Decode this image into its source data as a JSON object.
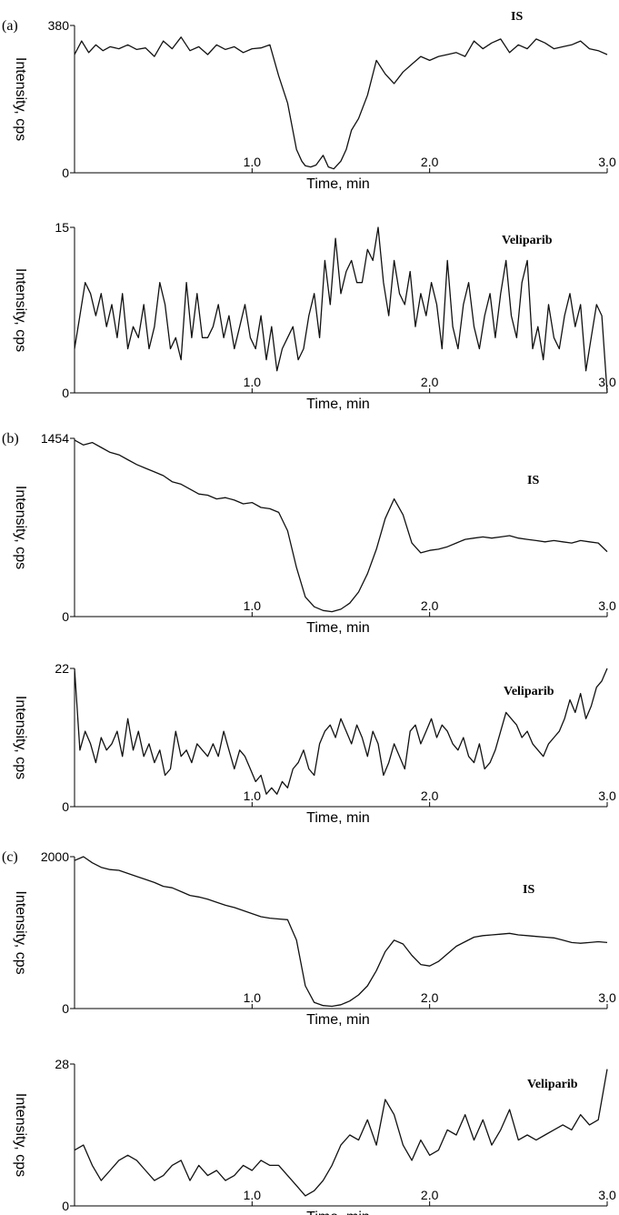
{
  "chart_data": [
    {
      "type": "line",
      "panel": "(a)",
      "series_label": "IS",
      "xlabel": "Time, min",
      "ylabel": "Intensity, cps",
      "xlim": [
        0,
        3.0
      ],
      "ylim": [
        0,
        380
      ],
      "xticks": [
        "1.0",
        "2.0",
        "3.0"
      ],
      "yticks": [
        "0",
        "380"
      ],
      "x": [
        0,
        0.04,
        0.08,
        0.12,
        0.16,
        0.2,
        0.25,
        0.3,
        0.35,
        0.4,
        0.45,
        0.5,
        0.55,
        0.6,
        0.65,
        0.7,
        0.75,
        0.8,
        0.85,
        0.9,
        0.95,
        1.0,
        1.05,
        1.1,
        1.15,
        1.2,
        1.25,
        1.28,
        1.3,
        1.33,
        1.36,
        1.4,
        1.43,
        1.46,
        1.5,
        1.53,
        1.56,
        1.6,
        1.65,
        1.7,
        1.75,
        1.8,
        1.85,
        1.9,
        1.95,
        2.0,
        2.05,
        2.1,
        2.15,
        2.2,
        2.25,
        2.3,
        2.35,
        2.4,
        2.45,
        2.5,
        2.55,
        2.6,
        2.65,
        2.7,
        2.75,
        2.8,
        2.85,
        2.9,
        2.95,
        3.0
      ],
      "y": [
        305,
        340,
        310,
        330,
        315,
        325,
        320,
        330,
        318,
        322,
        300,
        340,
        320,
        350,
        315,
        325,
        305,
        330,
        318,
        325,
        310,
        320,
        322,
        330,
        250,
        180,
        60,
        30,
        18,
        15,
        20,
        45,
        15,
        10,
        30,
        60,
        110,
        140,
        200,
        290,
        255,
        230,
        260,
        280,
        300,
        290,
        300,
        305,
        310,
        300,
        340,
        320,
        335,
        345,
        310,
        330,
        320,
        345,
        335,
        320,
        325,
        330,
        340,
        320,
        315,
        305
      ]
    },
    {
      "type": "line",
      "panel": "(a)",
      "series_label": "Veliparib",
      "xlabel": "Time, min",
      "ylabel": "Intensity, cps",
      "xlim": [
        0,
        3.0
      ],
      "ylim": [
        0,
        15
      ],
      "xticks": [
        "1.0",
        "2.0",
        "3.0"
      ],
      "yticks": [
        "0",
        "15"
      ],
      "x": [
        0,
        0.03,
        0.06,
        0.09,
        0.12,
        0.15,
        0.18,
        0.21,
        0.24,
        0.27,
        0.3,
        0.33,
        0.36,
        0.39,
        0.42,
        0.45,
        0.48,
        0.51,
        0.54,
        0.57,
        0.6,
        0.63,
        0.66,
        0.69,
        0.72,
        0.75,
        0.78,
        0.81,
        0.84,
        0.87,
        0.9,
        0.93,
        0.96,
        0.99,
        1.02,
        1.05,
        1.08,
        1.11,
        1.14,
        1.17,
        1.2,
        1.23,
        1.26,
        1.29,
        1.32,
        1.35,
        1.38,
        1.41,
        1.44,
        1.47,
        1.5,
        1.53,
        1.56,
        1.59,
        1.62,
        1.65,
        1.68,
        1.71,
        1.74,
        1.77,
        1.8,
        1.83,
        1.86,
        1.89,
        1.92,
        1.95,
        1.98,
        2.01,
        2.04,
        2.07,
        2.1,
        2.13,
        2.16,
        2.19,
        2.22,
        2.25,
        2.28,
        2.31,
        2.34,
        2.37,
        2.4,
        2.43,
        2.46,
        2.49,
        2.52,
        2.55,
        2.58,
        2.61,
        2.64,
        2.67,
        2.7,
        2.73,
        2.76,
        2.79,
        2.82,
        2.85,
        2.88,
        2.91,
        2.94,
        2.97,
        3.0
      ],
      "y": [
        4,
        7,
        10,
        9,
        7,
        9,
        6,
        8,
        5,
        9,
        4,
        6,
        5,
        8,
        4,
        6,
        10,
        8,
        4,
        5,
        3,
        10,
        5,
        9,
        5,
        5,
        6,
        8,
        5,
        7,
        4,
        6,
        8,
        5,
        4,
        7,
        3,
        6,
        2,
        4,
        5,
        6,
        3,
        4,
        7,
        9,
        5,
        12,
        8,
        14,
        9,
        11,
        12,
        10,
        10,
        13,
        12,
        15,
        10,
        7,
        12,
        9,
        8,
        11,
        6,
        9,
        7,
        10,
        8,
        4,
        12,
        6,
        4,
        8,
        10,
        6,
        4,
        7,
        9,
        5,
        9,
        12,
        7,
        5,
        10,
        12,
        4,
        6,
        3,
        8,
        5,
        4,
        7,
        9,
        6,
        8,
        2,
        5,
        8,
        7,
        0
      ]
    },
    {
      "type": "line",
      "panel": "(b)",
      "series_label": "IS",
      "xlabel": "Time, min",
      "ylabel": "Intensity, cps",
      "xlim": [
        0,
        3.0
      ],
      "ylim": [
        0,
        1454
      ],
      "xticks": [
        "1.0",
        "2.0",
        "3.0"
      ],
      "yticks": [
        "0",
        "1454"
      ],
      "x": [
        0,
        0.05,
        0.1,
        0.15,
        0.2,
        0.25,
        0.3,
        0.35,
        0.4,
        0.45,
        0.5,
        0.55,
        0.6,
        0.65,
        0.7,
        0.75,
        0.8,
        0.85,
        0.9,
        0.95,
        1.0,
        1.05,
        1.1,
        1.15,
        1.2,
        1.25,
        1.3,
        1.35,
        1.4,
        1.45,
        1.5,
        1.55,
        1.6,
        1.65,
        1.7,
        1.75,
        1.8,
        1.85,
        1.9,
        1.95,
        2.0,
        2.05,
        2.1,
        2.15,
        2.2,
        2.25,
        2.3,
        2.35,
        2.4,
        2.45,
        2.5,
        2.55,
        2.6,
        2.65,
        2.7,
        2.75,
        2.8,
        2.85,
        2.9,
        2.95,
        3.0
      ],
      "y": [
        1440,
        1400,
        1420,
        1380,
        1340,
        1320,
        1280,
        1240,
        1210,
        1180,
        1150,
        1100,
        1080,
        1040,
        1000,
        990,
        960,
        970,
        950,
        920,
        930,
        890,
        880,
        850,
        700,
        400,
        160,
        80,
        50,
        40,
        60,
        110,
        200,
        350,
        550,
        800,
        960,
        830,
        600,
        520,
        540,
        550,
        570,
        600,
        630,
        640,
        650,
        640,
        650,
        660,
        640,
        630,
        620,
        610,
        620,
        610,
        600,
        620,
        610,
        600,
        530
      ]
    },
    {
      "type": "line",
      "panel": "(b)",
      "series_label": "Veliparib",
      "xlabel": "Time, min",
      "ylabel": "Intensity, cps",
      "xlim": [
        0,
        3.0
      ],
      "ylim": [
        0,
        22
      ],
      "xticks": [
        "1.0",
        "2.0",
        "3.0"
      ],
      "yticks": [
        "0",
        "22"
      ],
      "x": [
        0,
        0.03,
        0.06,
        0.09,
        0.12,
        0.15,
        0.18,
        0.21,
        0.24,
        0.27,
        0.3,
        0.33,
        0.36,
        0.39,
        0.42,
        0.45,
        0.48,
        0.51,
        0.54,
        0.57,
        0.6,
        0.63,
        0.66,
        0.69,
        0.72,
        0.75,
        0.78,
        0.81,
        0.84,
        0.87,
        0.9,
        0.93,
        0.96,
        0.99,
        1.02,
        1.05,
        1.08,
        1.11,
        1.14,
        1.17,
        1.2,
        1.23,
        1.26,
        1.29,
        1.32,
        1.35,
        1.38,
        1.41,
        1.44,
        1.47,
        1.5,
        1.53,
        1.56,
        1.59,
        1.62,
        1.65,
        1.68,
        1.71,
        1.74,
        1.77,
        1.8,
        1.83,
        1.86,
        1.89,
        1.92,
        1.95,
        1.98,
        2.01,
        2.04,
        2.07,
        2.1,
        2.13,
        2.16,
        2.19,
        2.22,
        2.25,
        2.28,
        2.31,
        2.34,
        2.37,
        2.4,
        2.43,
        2.46,
        2.49,
        2.52,
        2.55,
        2.58,
        2.61,
        2.64,
        2.67,
        2.7,
        2.73,
        2.76,
        2.79,
        2.82,
        2.85,
        2.88,
        2.91,
        2.94,
        2.97,
        3.0
      ],
      "y": [
        22,
        9,
        12,
        10,
        7,
        11,
        9,
        10,
        12,
        8,
        14,
        9,
        12,
        8,
        10,
        7,
        9,
        5,
        6,
        12,
        8,
        9,
        7,
        10,
        9,
        8,
        10,
        8,
        12,
        9,
        6,
        9,
        8,
        6,
        4,
        5,
        2,
        3,
        2,
        4,
        3,
        6,
        7,
        9,
        6,
        5,
        10,
        12,
        13,
        11,
        14,
        12,
        10,
        13,
        11,
        8,
        12,
        10,
        5,
        7,
        10,
        8,
        6,
        12,
        13,
        10,
        12,
        14,
        11,
        13,
        12,
        10,
        9,
        11,
        8,
        7,
        10,
        6,
        7,
        9,
        12,
        15,
        14,
        13,
        11,
        12,
        10,
        9,
        8,
        10,
        11,
        12,
        14,
        17,
        15,
        18,
        14,
        16,
        19,
        20,
        22
      ]
    },
    {
      "type": "line",
      "panel": "(c)",
      "series_label": "IS",
      "xlabel": "Time, min",
      "ylabel": "Intensity, cps",
      "xlim": [
        0,
        3.0
      ],
      "ylim": [
        0,
        2000
      ],
      "xticks": [
        "1.0",
        "2.0",
        "3.0"
      ],
      "yticks": [
        "0",
        "2000"
      ],
      "x": [
        0,
        0.05,
        0.1,
        0.15,
        0.2,
        0.25,
        0.3,
        0.35,
        0.4,
        0.45,
        0.5,
        0.55,
        0.6,
        0.65,
        0.7,
        0.75,
        0.8,
        0.85,
        0.9,
        0.95,
        1.0,
        1.05,
        1.1,
        1.15,
        1.2,
        1.25,
        1.3,
        1.35,
        1.4,
        1.45,
        1.5,
        1.55,
        1.6,
        1.65,
        1.7,
        1.75,
        1.8,
        1.85,
        1.9,
        1.95,
        2.0,
        2.05,
        2.1,
        2.15,
        2.2,
        2.25,
        2.3,
        2.35,
        2.4,
        2.45,
        2.5,
        2.55,
        2.6,
        2.65,
        2.7,
        2.75,
        2.8,
        2.85,
        2.9,
        2.95,
        3.0
      ],
      "y": [
        1950,
        2000,
        1920,
        1860,
        1830,
        1820,
        1780,
        1740,
        1700,
        1660,
        1610,
        1590,
        1540,
        1490,
        1470,
        1440,
        1400,
        1360,
        1330,
        1290,
        1250,
        1210,
        1190,
        1180,
        1170,
        900,
        300,
        80,
        40,
        30,
        50,
        100,
        180,
        300,
        500,
        750,
        900,
        850,
        700,
        580,
        560,
        620,
        720,
        820,
        880,
        940,
        960,
        970,
        980,
        990,
        970,
        960,
        950,
        940,
        930,
        900,
        870,
        860,
        870,
        880,
        870
      ]
    },
    {
      "type": "line",
      "panel": "(c)",
      "series_label": "Veliparib",
      "xlabel": "Time, min",
      "ylabel": "Intensity, cps",
      "xlim": [
        0,
        3.0
      ],
      "ylim": [
        0,
        28
      ],
      "xticks": [
        "1.0",
        "2.0",
        "3.0"
      ],
      "yticks": [
        "0",
        "28"
      ],
      "x": [
        0,
        0.05,
        0.1,
        0.15,
        0.2,
        0.25,
        0.3,
        0.35,
        0.4,
        0.45,
        0.5,
        0.55,
        0.6,
        0.65,
        0.7,
        0.75,
        0.8,
        0.85,
        0.9,
        0.95,
        1.0,
        1.05,
        1.1,
        1.15,
        1.2,
        1.25,
        1.3,
        1.35,
        1.4,
        1.45,
        1.5,
        1.55,
        1.6,
        1.65,
        1.7,
        1.75,
        1.8,
        1.85,
        1.9,
        1.95,
        2.0,
        2.05,
        2.1,
        2.15,
        2.2,
        2.25,
        2.3,
        2.35,
        2.4,
        2.45,
        2.5,
        2.55,
        2.6,
        2.65,
        2.7,
        2.75,
        2.8,
        2.85,
        2.9,
        2.95,
        3.0
      ],
      "y": [
        11,
        12,
        8,
        5,
        7,
        9,
        10,
        9,
        7,
        5,
        6,
        8,
        9,
        5,
        8,
        6,
        7,
        5,
        6,
        8,
        7,
        9,
        8,
        8,
        6,
        4,
        2,
        3,
        5,
        8,
        12,
        14,
        13,
        17,
        12,
        21,
        18,
        12,
        9,
        13,
        10,
        11,
        15,
        14,
        18,
        13,
        17,
        12,
        15,
        19,
        13,
        14,
        13,
        14,
        15,
        16,
        15,
        18,
        16,
        17,
        27
      ]
    }
  ]
}
